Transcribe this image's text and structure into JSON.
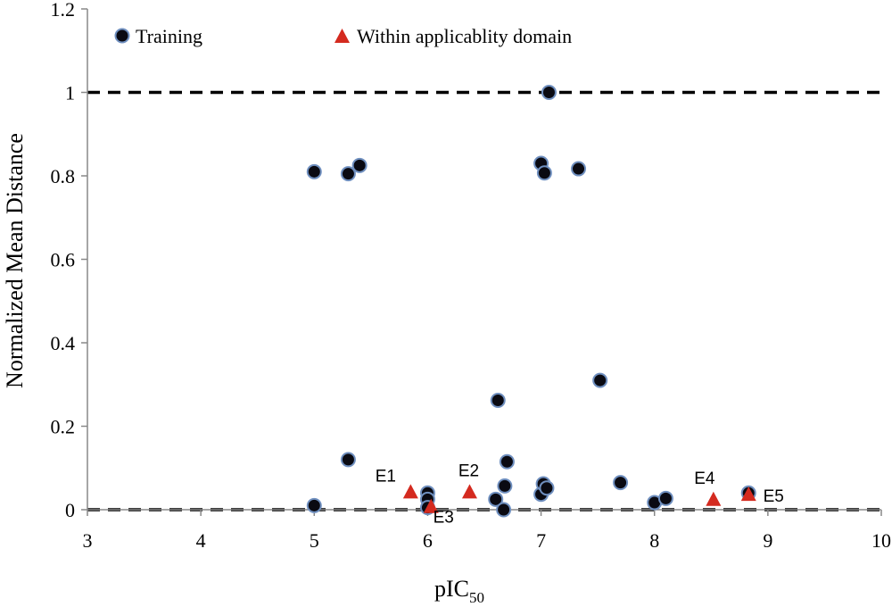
{
  "chart_data": {
    "type": "scatter",
    "xlabel": "pIC",
    "xlabel_sub": "50",
    "ylabel": "Normalized Mean Distance",
    "xlim": [
      3,
      10
    ],
    "ylim": [
      0,
      1.2
    ],
    "xticks": [
      "3",
      "4",
      "5",
      "6",
      "7",
      "8",
      "9",
      "10"
    ],
    "yticks": [
      "0",
      "0.2",
      "0.4",
      "0.6",
      "0.8",
      "1",
      "1.2"
    ],
    "grid": false,
    "legend_position": "top",
    "reference_lines": [
      0,
      1
    ],
    "colors": {
      "training": "#0a0a12",
      "training_edge": "#6f8fbf",
      "within": "#d42a1f"
    },
    "series": [
      {
        "name": "Training",
        "marker": "circle",
        "points": [
          [
            5.0,
            0.81
          ],
          [
            5.3,
            0.805
          ],
          [
            5.4,
            0.825
          ],
          [
            5.0,
            0.01
          ],
          [
            5.3,
            0.12
          ],
          [
            6.0,
            0.04
          ],
          [
            6.0,
            0.025
          ],
          [
            6.0,
            0.005
          ],
          [
            6.62,
            0.262
          ],
          [
            6.6,
            0.025
          ],
          [
            6.68,
            0.057
          ],
          [
            6.7,
            0.115
          ],
          [
            6.67,
            0.0
          ],
          [
            7.0,
            0.83
          ],
          [
            7.03,
            0.807
          ],
          [
            7.07,
            1.0
          ],
          [
            7.33,
            0.817
          ],
          [
            7.0,
            0.037
          ],
          [
            7.02,
            0.062
          ],
          [
            7.05,
            0.052
          ],
          [
            7.52,
            0.31
          ],
          [
            7.7,
            0.065
          ],
          [
            8.0,
            0.017
          ],
          [
            8.1,
            0.027
          ],
          [
            8.83,
            0.04
          ]
        ]
      },
      {
        "name": "Within applicablity domain",
        "marker": "triangle",
        "points": [
          {
            "label": "E1",
            "x": 5.85,
            "y": 0.042
          },
          {
            "label": "E2",
            "x": 6.37,
            "y": 0.042
          },
          {
            "label": "E3",
            "x": 6.03,
            "y": 0.007
          },
          {
            "label": "E4",
            "x": 8.52,
            "y": 0.024
          },
          {
            "label": "E5",
            "x": 8.83,
            "y": 0.036
          }
        ]
      }
    ]
  }
}
